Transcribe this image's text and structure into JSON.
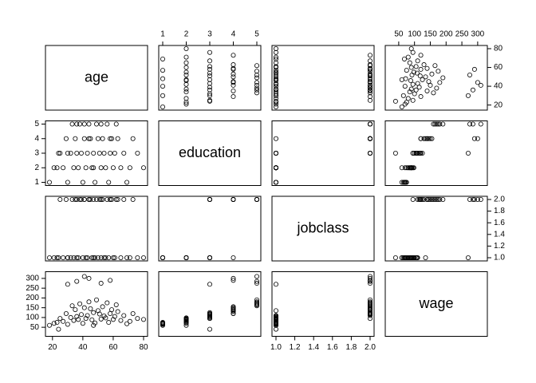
{
  "chart_data": {
    "type": "scatter_matrix",
    "variables": [
      {
        "name": "age",
        "lim": [
          18,
          80
        ],
        "ticks": [
          20,
          40,
          60,
          80
        ],
        "values": [
          18,
          21,
          23,
          25,
          27,
          29,
          30,
          32,
          33,
          34,
          35,
          36,
          37,
          38,
          39,
          40,
          41,
          42,
          43,
          44,
          45,
          46,
          47,
          48,
          49,
          50,
          51,
          52,
          53,
          54,
          55,
          56,
          57,
          58,
          59,
          60,
          61,
          62,
          63,
          65,
          67,
          69,
          71,
          73,
          76,
          80,
          36,
          44,
          52,
          30,
          41,
          58,
          47,
          24
        ]
      },
      {
        "name": "education",
        "lim": [
          1,
          5
        ],
        "ticks": [
          1,
          2,
          3,
          4,
          5
        ],
        "values": [
          1,
          2,
          2,
          3,
          2,
          4,
          1,
          3,
          5,
          2,
          4,
          3,
          2,
          5,
          3,
          1,
          4,
          2,
          3,
          5,
          4,
          2,
          3,
          1,
          5,
          4,
          3,
          2,
          4,
          3,
          2,
          5,
          1,
          3,
          4,
          2,
          3,
          5,
          4,
          2,
          3,
          1,
          2,
          4,
          3,
          2,
          5,
          4,
          5,
          3,
          5,
          4,
          2,
          3
        ]
      },
      {
        "name": "jobclass",
        "lim": [
          1,
          2
        ],
        "ticks": [
          {
            "value": 1,
            "label": "1.0"
          },
          {
            "value": 1.2,
            "label": "1.2"
          },
          {
            "value": 1.4,
            "label": "1.4"
          },
          {
            "value": 1.6,
            "label": "1.6"
          },
          {
            "value": 1.8,
            "label": "1.8"
          },
          {
            "value": 2,
            "label": "2.0"
          }
        ],
        "values": [
          1,
          1,
          1,
          2,
          1,
          2,
          1,
          1,
          2,
          1,
          2,
          1,
          1,
          2,
          2,
          1,
          2,
          1,
          1,
          2,
          2,
          1,
          2,
          1,
          2,
          1,
          2,
          1,
          2,
          1,
          1,
          2,
          1,
          2,
          2,
          1,
          1,
          2,
          2,
          1,
          2,
          1,
          1,
          2,
          1,
          1,
          2,
          2,
          2,
          1,
          2,
          2,
          1,
          1
        ]
      },
      {
        "name": "wage",
        "lim": [
          20,
          318
        ],
        "ticks": [
          50,
          100,
          150,
          200,
          250,
          300
        ],
        "values": [
          60,
          70,
          75,
          95,
          80,
          120,
          65,
          100,
          160,
          85,
          140,
          105,
          90,
          170,
          115,
          70,
          150,
          95,
          110,
          180,
          145,
          88,
          125,
          72,
          190,
          135,
          118,
          92,
          155,
          108,
          98,
          175,
          75,
          120,
          140,
          90,
          105,
          165,
          130,
          85,
          110,
          68,
          80,
          120,
          95,
          90,
          285,
          300,
          275,
          270,
          310,
          290,
          60,
          40
        ]
      }
    ]
  }
}
